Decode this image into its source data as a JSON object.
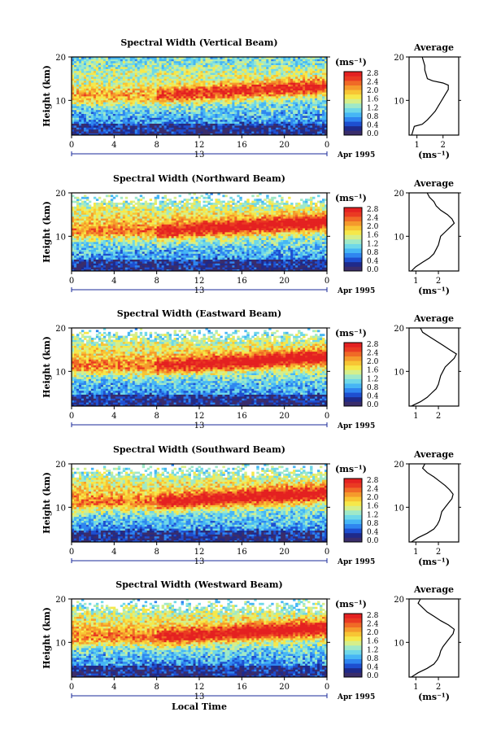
{
  "chart_data": [
    {
      "type": "heatmap",
      "title": "Spectral Width (Vertical Beam)",
      "xlabel": "",
      "ylabel": "Height (km)",
      "x_ticks": [
        "0",
        "4",
        "8",
        "12",
        "16",
        "20",
        "0"
      ],
      "y_ticks": [
        "10",
        "20"
      ],
      "date_label": "13",
      "date_suffix": "Apr 1995",
      "xlim": [
        0,
        24
      ],
      "ylim": [
        2,
        20
      ],
      "colorbar": {
        "unit_label": "(ms⁻¹)",
        "ticks": [
          "2.8",
          "2.4",
          "2.0",
          "1.6",
          "1.2",
          "0.8",
          "0.4",
          "0.0"
        ],
        "range": [
          0,
          2.8
        ]
      },
      "average": {
        "title": "Average",
        "xlabel": "(ms⁻¹)",
        "x_ticks": [
          "1",
          "2"
        ],
        "xlim": [
          0.7,
          2.6
        ],
        "profile": [
          [
            0.8,
            2
          ],
          [
            0.85,
            3
          ],
          [
            0.9,
            4
          ],
          [
            1.2,
            4.5
          ],
          [
            1.4,
            5.5
          ],
          [
            1.55,
            6.5
          ],
          [
            1.7,
            7.5
          ],
          [
            1.8,
            8.5
          ],
          [
            1.9,
            9.5
          ],
          [
            2.0,
            10.5
          ],
          [
            2.1,
            11.5
          ],
          [
            2.2,
            12.5
          ],
          [
            2.2,
            13.5
          ],
          [
            2.0,
            14
          ],
          [
            1.6,
            14.5
          ],
          [
            1.4,
            15
          ],
          [
            1.35,
            16
          ],
          [
            1.3,
            17
          ],
          [
            1.3,
            18
          ],
          [
            1.25,
            19
          ],
          [
            1.2,
            20
          ]
        ]
      }
    },
    {
      "type": "heatmap",
      "title": "Spectral Width (Northward Beam)",
      "xlabel": "",
      "ylabel": "Height (km)",
      "x_ticks": [
        "0",
        "4",
        "8",
        "12",
        "16",
        "20",
        "0"
      ],
      "y_ticks": [
        "10",
        "20"
      ],
      "date_label": "13",
      "date_suffix": "Apr 1995",
      "xlim": [
        0,
        24
      ],
      "ylim": [
        2,
        20
      ],
      "colorbar": {
        "unit_label": "(ms⁻¹)",
        "ticks": [
          "2.8",
          "2.4",
          "2.0",
          "1.6",
          "1.2",
          "0.8",
          "0.4",
          "0.0"
        ],
        "range": [
          0,
          2.8
        ]
      },
      "average": {
        "title": "Average",
        "xlabel": "(ms⁻¹)",
        "x_ticks": [
          "1",
          "2"
        ],
        "xlim": [
          0.7,
          2.9
        ],
        "profile": [
          [
            0.8,
            2
          ],
          [
            1.0,
            3
          ],
          [
            1.3,
            4
          ],
          [
            1.6,
            5
          ],
          [
            1.8,
            6
          ],
          [
            1.9,
            7
          ],
          [
            2.0,
            8
          ],
          [
            2.05,
            9
          ],
          [
            2.1,
            10
          ],
          [
            2.3,
            11
          ],
          [
            2.5,
            12
          ],
          [
            2.7,
            13
          ],
          [
            2.6,
            14
          ],
          [
            2.4,
            15
          ],
          [
            2.1,
            16
          ],
          [
            1.9,
            17
          ],
          [
            1.8,
            18
          ],
          [
            1.6,
            19
          ],
          [
            1.5,
            20
          ]
        ]
      }
    },
    {
      "type": "heatmap",
      "title": "Spectral Width (Eastward Beam)",
      "xlabel": "",
      "ylabel": "Height (km)",
      "x_ticks": [
        "0",
        "4",
        "8",
        "12",
        "16",
        "20",
        "0"
      ],
      "y_ticks": [
        "10",
        "20"
      ],
      "date_label": "13",
      "date_suffix": "Apr 1995",
      "xlim": [
        0,
        24
      ],
      "ylim": [
        2,
        20
      ],
      "colorbar": {
        "unit_label": "(ms⁻¹)",
        "ticks": [
          "2.8",
          "2.4",
          "2.0",
          "1.6",
          "1.2",
          "0.8",
          "0.4",
          "0.0"
        ],
        "range": [
          0,
          2.8
        ]
      },
      "average": {
        "title": "Average",
        "xlabel": "",
        "x_ticks": [
          "1",
          "2"
        ],
        "xlim": [
          0.7,
          2.9
        ],
        "profile": [
          [
            0.8,
            2
          ],
          [
            1.2,
            3
          ],
          [
            1.5,
            4
          ],
          [
            1.7,
            5
          ],
          [
            1.9,
            6
          ],
          [
            2.0,
            7
          ],
          [
            2.05,
            8
          ],
          [
            2.1,
            9
          ],
          [
            2.2,
            10
          ],
          [
            2.3,
            11
          ],
          [
            2.5,
            12
          ],
          [
            2.7,
            13
          ],
          [
            2.8,
            14
          ],
          [
            2.5,
            15
          ],
          [
            2.2,
            16
          ],
          [
            1.9,
            17
          ],
          [
            1.6,
            18
          ],
          [
            1.3,
            19
          ],
          [
            1.2,
            20
          ]
        ]
      }
    },
    {
      "type": "heatmap",
      "title": "Spectral Width (Southward Beam)",
      "xlabel": "",
      "ylabel": "Height (km)",
      "x_ticks": [
        "0",
        "4",
        "8",
        "12",
        "16",
        "20",
        "0"
      ],
      "y_ticks": [
        "10",
        "20"
      ],
      "date_label": "13",
      "date_suffix": "Apr 1995",
      "xlim": [
        0,
        24
      ],
      "ylim": [
        2,
        20
      ],
      "colorbar": {
        "unit_label": "(ms⁻¹)",
        "ticks": [
          "2.8",
          "2.4",
          "2.0",
          "1.6",
          "1.2",
          "0.8",
          "0.4",
          "0.0"
        ],
        "range": [
          0,
          2.8
        ]
      },
      "average": {
        "title": "Average",
        "xlabel": "(ms⁻¹)",
        "x_ticks": [
          "1",
          "2"
        ],
        "xlim": [
          0.7,
          2.9
        ],
        "profile": [
          [
            0.8,
            2
          ],
          [
            1.1,
            3
          ],
          [
            1.5,
            4
          ],
          [
            1.8,
            5
          ],
          [
            1.95,
            6
          ],
          [
            2.05,
            7
          ],
          [
            2.1,
            8
          ],
          [
            2.15,
            9
          ],
          [
            2.3,
            10
          ],
          [
            2.45,
            11
          ],
          [
            2.6,
            12
          ],
          [
            2.65,
            13
          ],
          [
            2.5,
            14
          ],
          [
            2.3,
            15
          ],
          [
            2.05,
            16
          ],
          [
            1.8,
            17
          ],
          [
            1.5,
            18
          ],
          [
            1.3,
            19
          ],
          [
            1.4,
            20
          ]
        ]
      }
    },
    {
      "type": "heatmap",
      "title": "Spectral Width (Westward Beam)",
      "xlabel": "Local Time",
      "ylabel": "Height (km)",
      "x_ticks": [
        "0",
        "4",
        "8",
        "12",
        "16",
        "20",
        "0"
      ],
      "y_ticks": [
        "10",
        "20"
      ],
      "date_label": "13",
      "date_suffix": "Apr 1995",
      "xlim": [
        0,
        24
      ],
      "ylim": [
        2,
        20
      ],
      "colorbar": {
        "unit_label": "(ms⁻¹)",
        "ticks": [
          "2.8",
          "2.4",
          "2.0",
          "1.6",
          "1.2",
          "0.8",
          "0.4",
          "0.0"
        ],
        "range": [
          0,
          2.8
        ]
      },
      "average": {
        "title": "Average",
        "xlabel": "(ms⁻¹)",
        "x_ticks": [
          "1",
          "2"
        ],
        "xlim": [
          0.7,
          2.9
        ],
        "profile": [
          [
            0.8,
            2
          ],
          [
            1.1,
            3
          ],
          [
            1.5,
            4
          ],
          [
            1.8,
            5
          ],
          [
            1.95,
            6
          ],
          [
            2.05,
            7
          ],
          [
            2.1,
            8
          ],
          [
            2.2,
            9
          ],
          [
            2.35,
            10
          ],
          [
            2.5,
            11
          ],
          [
            2.65,
            12
          ],
          [
            2.7,
            13
          ],
          [
            2.45,
            14
          ],
          [
            2.1,
            15
          ],
          [
            1.8,
            16
          ],
          [
            1.5,
            17
          ],
          [
            1.3,
            18
          ],
          [
            1.1,
            19
          ],
          [
            1.2,
            20
          ]
        ]
      }
    }
  ],
  "colors": {
    "scale": [
      "#3a2d6b",
      "#1f2a8a",
      "#1e4fd0",
      "#2f86f0",
      "#46b6f5",
      "#6fd8e8",
      "#9fe9c8",
      "#d6ef8a",
      "#f6e84a",
      "#f8c534",
      "#f59a2c",
      "#f06a26",
      "#ea3a22",
      "#e42121"
    ],
    "axis": "#000000",
    "date_bar": "#1a2a9a"
  }
}
